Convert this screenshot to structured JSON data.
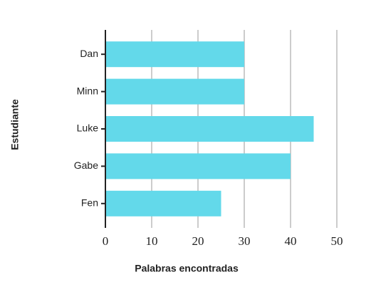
{
  "chart_data": {
    "type": "bar",
    "orientation": "horizontal",
    "categories": [
      "Dan",
      "Minn",
      "Luke",
      "Gabe",
      "Fen"
    ],
    "values": [
      30,
      30,
      45,
      40,
      25
    ],
    "color": "#63d9ea",
    "xlabel": "Palabras encontradas",
    "ylabel": "Estudiante",
    "xlim": [
      0,
      50
    ],
    "xticks": [
      0,
      10,
      20,
      30,
      40,
      50
    ],
    "grid": true
  }
}
